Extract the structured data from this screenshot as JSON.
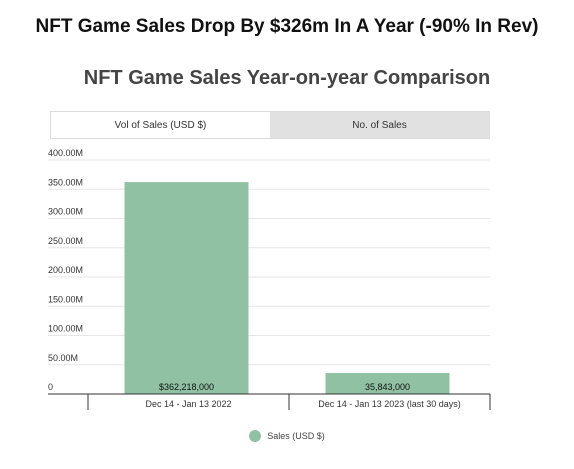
{
  "headline": "NFT Game Sales Drop By $326m In A Year (-90% In Rev)",
  "tabs": [
    {
      "label": "Vol of Sales (USD $)",
      "active": true
    },
    {
      "label": "No. of Sales",
      "active": false
    }
  ],
  "colors": {
    "bar": "#8fc1a2",
    "grid": "#e6e6e6",
    "axis": "#333333"
  },
  "chart_data": {
    "type": "bar",
    "title": "NFT Game Sales Year-on-year Comparison",
    "categories": [
      "Dec 14 - Jan 13 2022",
      "Dec 14 - Jan 13 2023 (last 30 days)"
    ],
    "series": [
      {
        "name": "Sales (USD $)",
        "values": [
          362218000,
          35843000
        ]
      }
    ],
    "data_labels": [
      "$362,218,000",
      "35,843,000"
    ],
    "ylim": [
      0,
      400000000
    ],
    "yticks": [
      0,
      50000000,
      100000000,
      150000000,
      200000000,
      250000000,
      300000000,
      350000000,
      400000000
    ],
    "ytick_labels": [
      "0",
      "50.00M",
      "100.00M",
      "150.00M",
      "200.00M",
      "250.00M",
      "300.00M",
      "350.00M",
      "400.00M"
    ],
    "grid": true,
    "legend_position": "bottom"
  }
}
